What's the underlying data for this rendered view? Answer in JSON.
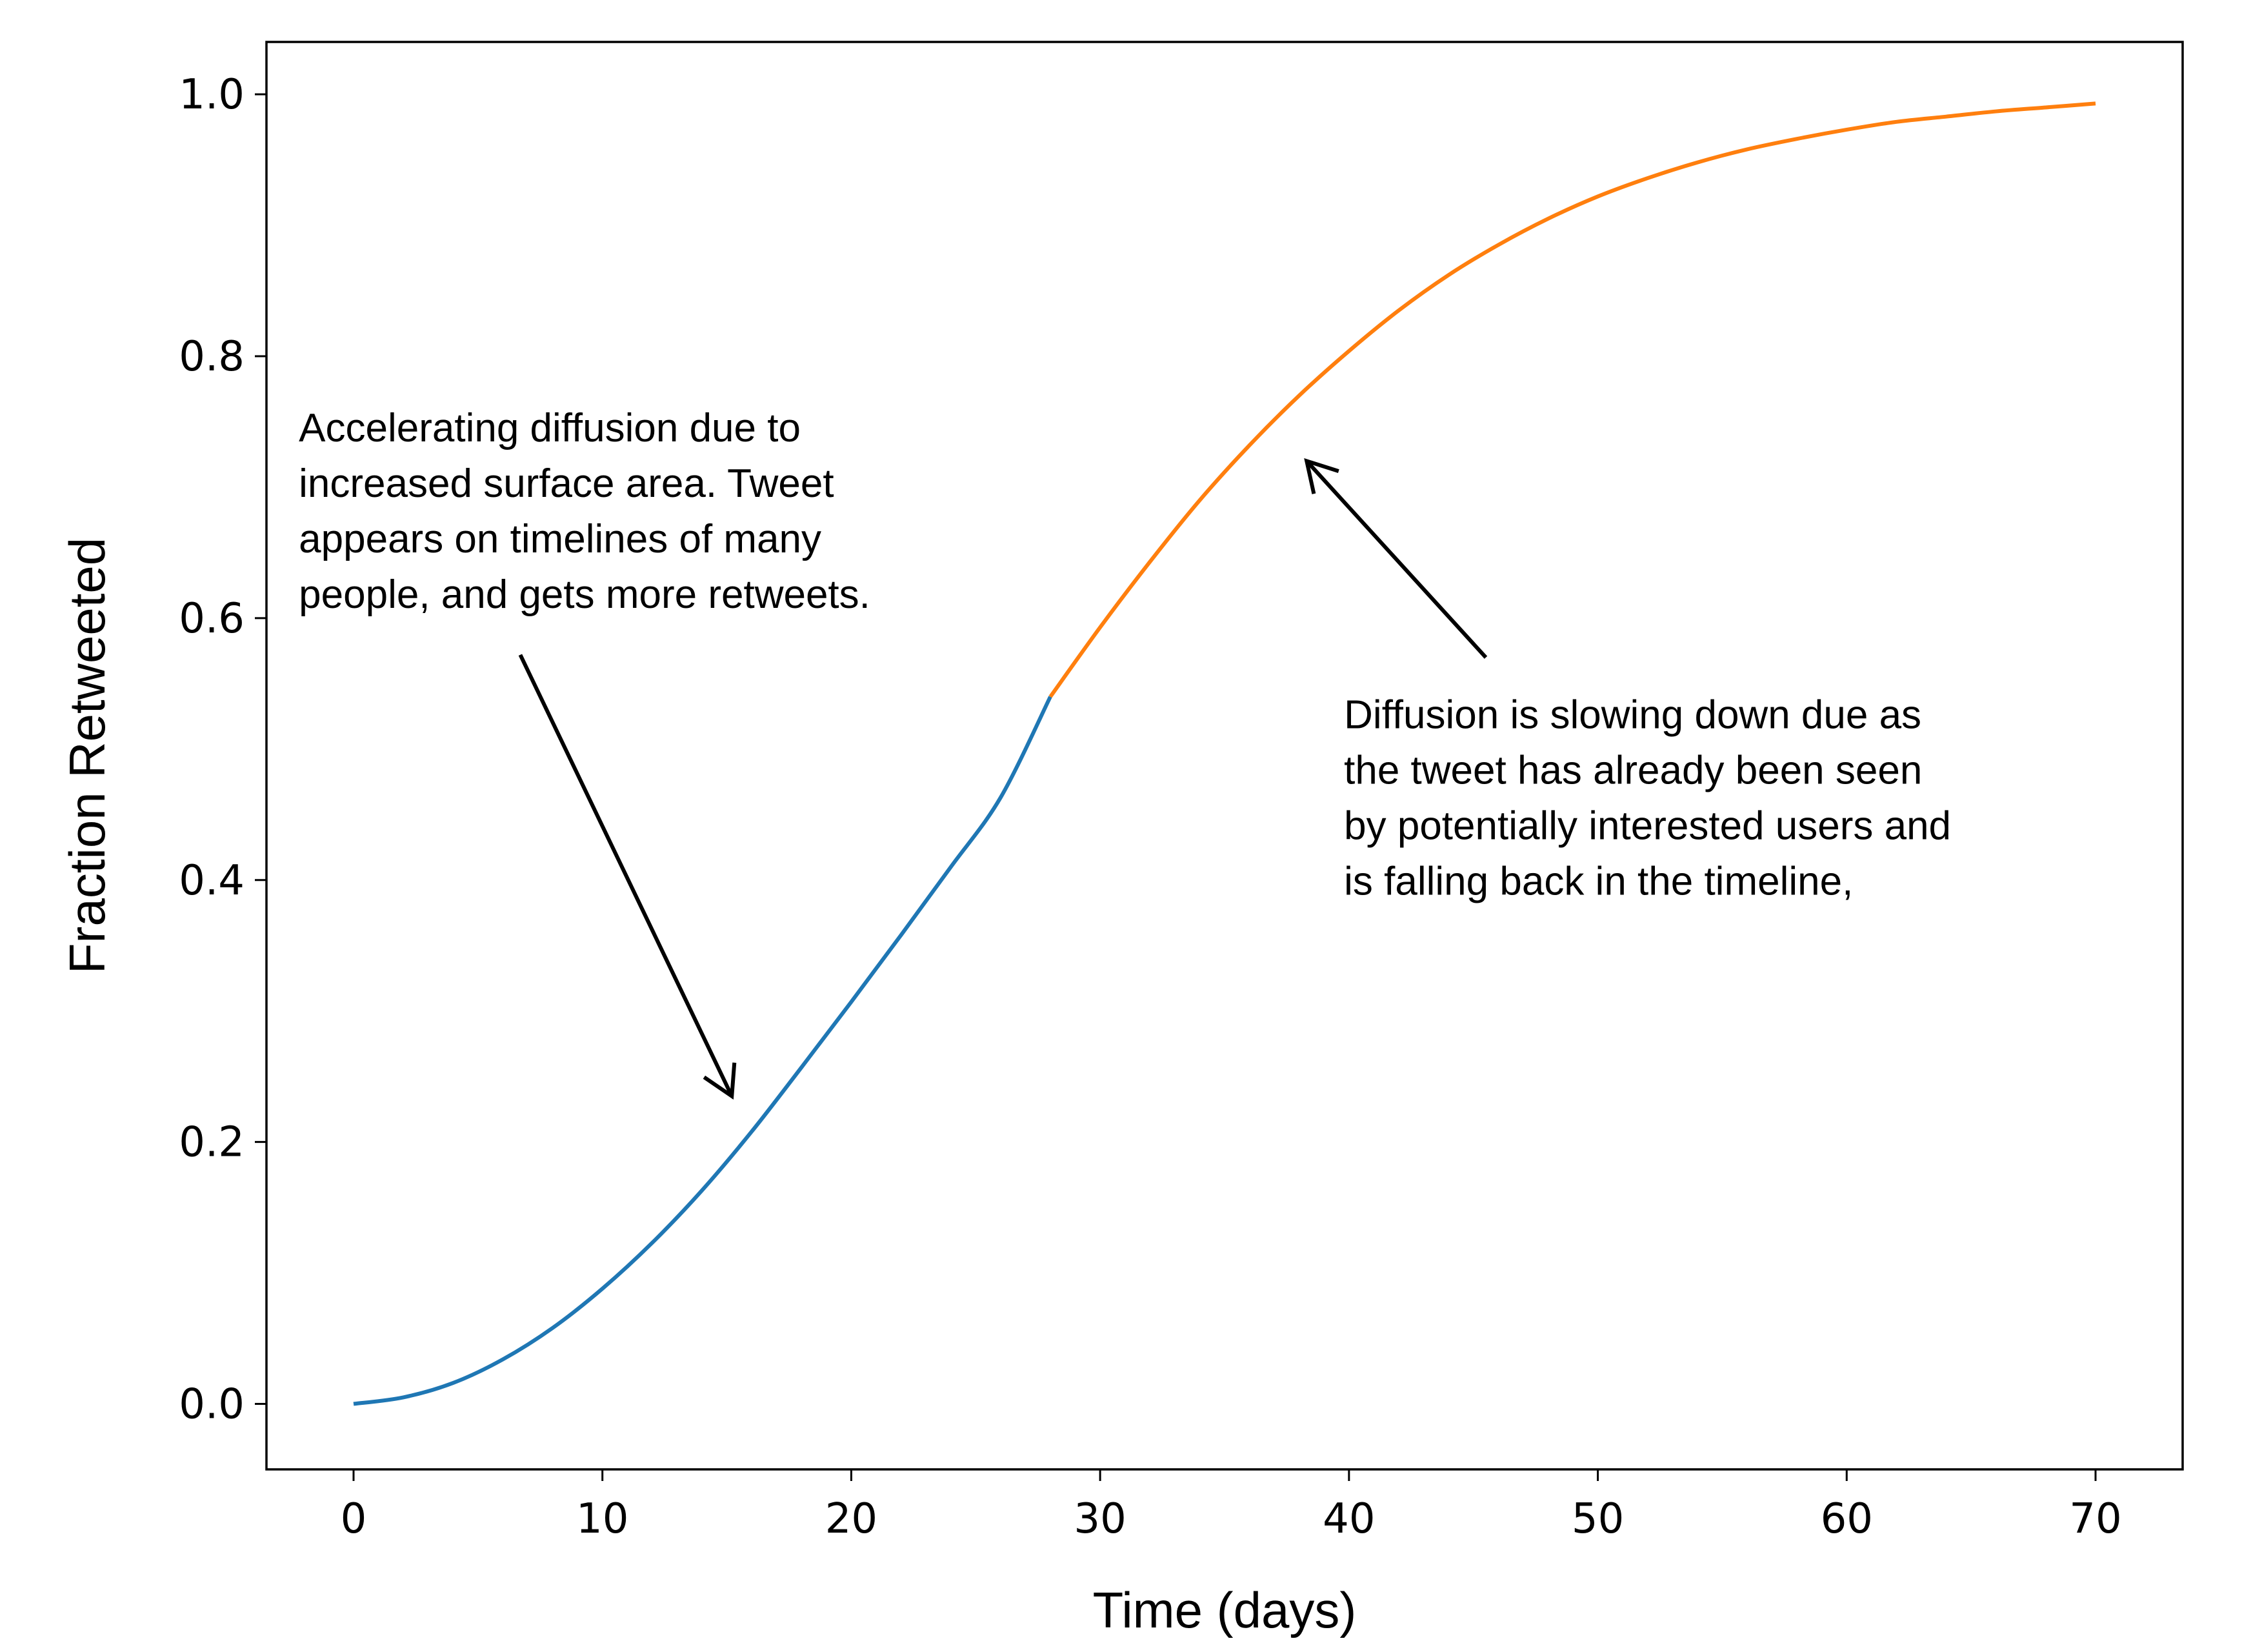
{
  "chart_data": {
    "type": "line",
    "title": "",
    "xlabel": "Time (days)",
    "ylabel": "Fraction Retweeted",
    "xlim": [
      -3.5,
      73.5
    ],
    "ylim": [
      -0.05,
      1.04
    ],
    "xticks": [
      0,
      10,
      20,
      30,
      40,
      50,
      60,
      70
    ],
    "yticks": [
      0.0,
      0.2,
      0.4,
      0.6,
      0.8,
      1.0
    ],
    "xtick_labels": [
      "0",
      "10",
      "20",
      "30",
      "40",
      "50",
      "60",
      "70"
    ],
    "ytick_labels": [
      "0.0",
      "0.2",
      "0.4",
      "0.6",
      "0.8",
      "1.0"
    ],
    "grid": false,
    "legend": "none",
    "series": [
      {
        "color": "#1f77b4",
        "x": [
          0,
          2,
          4,
          6,
          8,
          10,
          12,
          14,
          16,
          18,
          20,
          22,
          24,
          26,
          28
        ],
        "y": [
          0.0,
          0.005,
          0.016,
          0.034,
          0.058,
          0.088,
          0.123,
          0.163,
          0.208,
          0.257,
          0.307,
          0.358,
          0.41,
          0.463,
          0.54
        ]
      },
      {
        "color": "#ff7f0e",
        "x": [
          28,
          30,
          32,
          34,
          36,
          38,
          40,
          42,
          44,
          46,
          48,
          50,
          52,
          54,
          56,
          58,
          60,
          62,
          64,
          66,
          68,
          70
        ],
        "y": [
          0.54,
          0.593,
          0.643,
          0.69,
          0.732,
          0.77,
          0.804,
          0.835,
          0.862,
          0.885,
          0.905,
          0.922,
          0.936,
          0.948,
          0.958,
          0.966,
          0.973,
          0.979,
          0.983,
          0.987,
          0.99,
          0.993
        ]
      }
    ],
    "annotations": [
      {
        "lines": [
          "Accelerating diffusion due to",
          "increased surface area. Tweet",
          "appears on timelines of many",
          "people, and gets more retweets."
        ],
        "text_at": [
          -2.2,
          0.735
        ],
        "arrow_from": [
          6.7,
          0.572
        ],
        "arrow_to": [
          15.2,
          0.235
        ]
      },
      {
        "lines": [
          "Diffusion is slowing down due as",
          "the tweet has already been seen",
          "by potentially interested users and",
          "is falling back in the timeline,"
        ],
        "text_at": [
          39.8,
          0.516
        ],
        "arrow_from": [
          45.5,
          0.57
        ],
        "arrow_to": [
          38.3,
          0.72
        ]
      }
    ]
  }
}
